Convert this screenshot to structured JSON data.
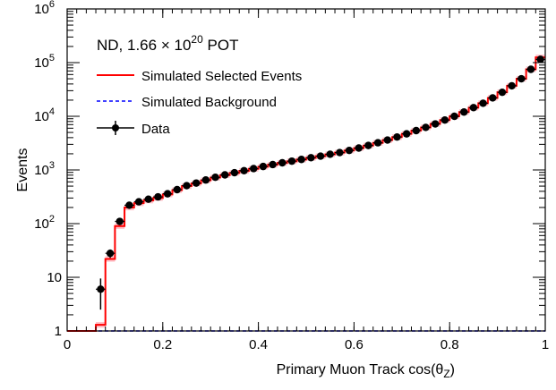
{
  "chart_data": {
    "type": "line",
    "annotation": {
      "prefix": "ND, 1.66",
      "times": "×",
      "base": "10",
      "exponent": "20",
      "suffix": "POT"
    },
    "xlabel": {
      "main": "Primary Muon Track cos(θ",
      "sub": "Z",
      "close": ")"
    },
    "ylabel": "Events",
    "xlim": [
      0,
      1
    ],
    "ylim": [
      1,
      1000000
    ],
    "yscale": "log",
    "x_ticks": [
      {
        "value": 0,
        "label": "0"
      },
      {
        "value": 0.2,
        "label": "0.2"
      },
      {
        "value": 0.4,
        "label": "0.4"
      },
      {
        "value": 0.6,
        "label": "0.6"
      },
      {
        "value": 0.8,
        "label": "0.8"
      },
      {
        "value": 1,
        "label": "1"
      }
    ],
    "y_ticks": [
      {
        "value": 1,
        "label": "1"
      },
      {
        "value": 10,
        "label": "10"
      },
      {
        "value": 100,
        "base": "10",
        "exp": "2"
      },
      {
        "value": 1000,
        "base": "10",
        "exp": "3"
      },
      {
        "value": 10000,
        "base": "10",
        "exp": "4"
      },
      {
        "value": 100000,
        "base": "10",
        "exp": "5"
      },
      {
        "value": 1000000,
        "base": "10",
        "exp": "6"
      }
    ],
    "legend_position": "top-left",
    "bin_width": 0.02,
    "bin_starts": [
      0.0,
      0.02,
      0.04,
      0.06,
      0.08,
      0.1,
      0.12,
      0.14,
      0.16,
      0.18,
      0.2,
      0.22,
      0.24,
      0.26,
      0.28,
      0.3,
      0.32,
      0.34,
      0.36,
      0.38,
      0.4,
      0.42,
      0.44,
      0.46,
      0.48,
      0.5,
      0.52,
      0.54,
      0.56,
      0.58,
      0.6,
      0.62,
      0.64,
      0.66,
      0.68,
      0.7,
      0.72,
      0.74,
      0.76,
      0.78,
      0.8,
      0.82,
      0.84,
      0.86,
      0.88,
      0.9,
      0.92,
      0.94,
      0.96,
      0.98
    ],
    "series": [
      {
        "name": "Simulated Selected Events",
        "style": "histogram",
        "color": "#ff0000",
        "values": [
          1,
          1,
          1,
          1.3,
          22,
          90,
          200,
          240,
          270,
          300,
          350,
          420,
          500,
          560,
          640,
          720,
          800,
          880,
          960,
          1050,
          1150,
          1250,
          1350,
          1450,
          1560,
          1680,
          1800,
          1950,
          2100,
          2300,
          2550,
          2850,
          3200,
          3600,
          4100,
          4700,
          5400,
          6200,
          7200,
          8500,
          10000,
          12000,
          14500,
          17500,
          22000,
          28000,
          37000,
          50000,
          75000,
          125000
        ]
      },
      {
        "name": "Simulated Background",
        "style": "dashed-histogram",
        "color": "#0000ff",
        "values": [
          1,
          1,
          1,
          1,
          1,
          1,
          1,
          1,
          1,
          1,
          1,
          1,
          1,
          1,
          1,
          1,
          1,
          1,
          1,
          1,
          1,
          1,
          1,
          1,
          1,
          1,
          1,
          1,
          1,
          1,
          1,
          1,
          1,
          1,
          1,
          1,
          1,
          1,
          1,
          1,
          1,
          1,
          1,
          1,
          1,
          1,
          1,
          1,
          1,
          1
        ]
      },
      {
        "name": "Data",
        "style": "points",
        "color": "#000000",
        "x": [
          0.07,
          0.09,
          0.11,
          0.13,
          0.15,
          0.17,
          0.19,
          0.21,
          0.23,
          0.25,
          0.27,
          0.29,
          0.31,
          0.33,
          0.35,
          0.37,
          0.39,
          0.41,
          0.43,
          0.45,
          0.47,
          0.49,
          0.51,
          0.53,
          0.55,
          0.57,
          0.59,
          0.61,
          0.63,
          0.65,
          0.67,
          0.69,
          0.71,
          0.73,
          0.75,
          0.77,
          0.79,
          0.81,
          0.83,
          0.85,
          0.87,
          0.89,
          0.91,
          0.93,
          0.95,
          0.97,
          0.99
        ],
        "y": [
          6,
          28,
          110,
          220,
          255,
          285,
          315,
          360,
          430,
          510,
          570,
          650,
          730,
          810,
          890,
          970,
          1060,
          1160,
          1260,
          1360,
          1460,
          1570,
          1690,
          1810,
          1960,
          2110,
          2310,
          2560,
          2860,
          3210,
          3610,
          4110,
          4710,
          5410,
          6210,
          7210,
          8510,
          10000,
          12000,
          14500,
          17500,
          22000,
          28000,
          37000,
          50000,
          75000,
          115000
        ],
        "yerr_low": [
          3.5,
          5,
          10,
          15,
          16,
          17,
          18,
          19,
          21,
          23,
          24,
          25,
          27,
          28,
          30,
          31,
          33,
          34,
          35,
          37,
          38,
          40,
          41,
          43,
          44,
          46,
          48,
          51,
          53,
          57,
          60,
          64,
          69,
          74,
          79,
          85,
          92,
          100,
          110,
          120,
          132,
          148,
          167,
          192,
          224,
          274,
          339
        ],
        "yerr_high": [
          3.5,
          5,
          10,
          15,
          16,
          17,
          18,
          19,
          21,
          23,
          24,
          25,
          27,
          28,
          30,
          31,
          33,
          34,
          35,
          37,
          38,
          40,
          41,
          43,
          44,
          46,
          48,
          51,
          53,
          57,
          60,
          64,
          69,
          74,
          79,
          85,
          92,
          100,
          110,
          120,
          132,
          148,
          167,
          192,
          224,
          274,
          339
        ]
      }
    ]
  }
}
